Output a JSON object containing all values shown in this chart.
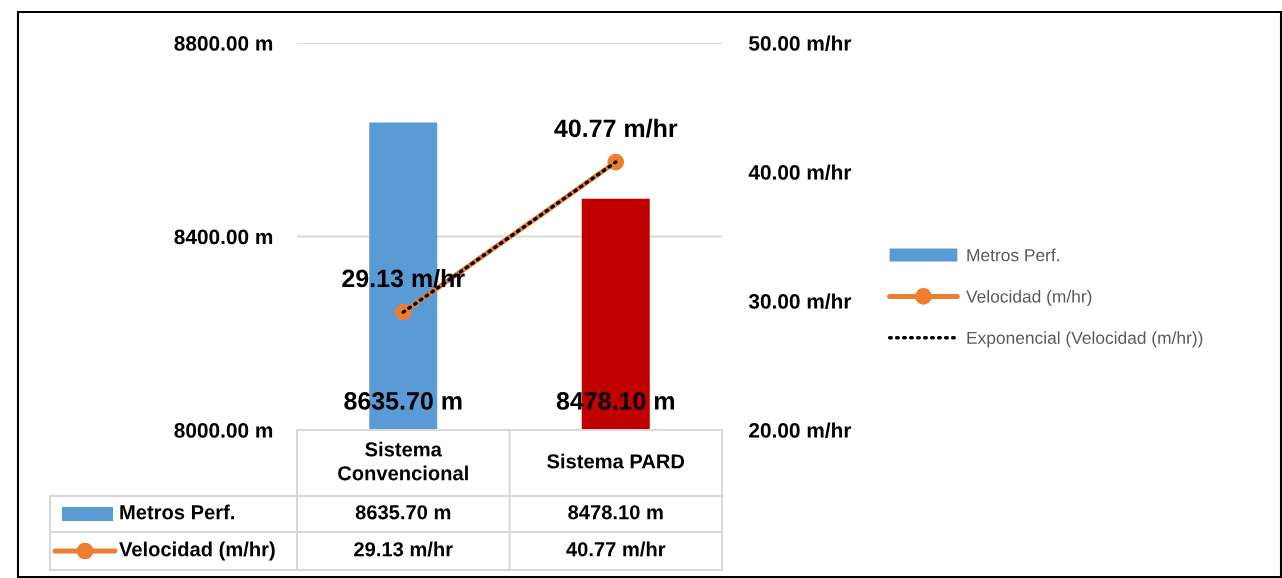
{
  "chart_data": {
    "type": "bar",
    "categories": [
      "Sistema Convencional",
      "Sistema PARD"
    ],
    "series": [
      {
        "name": "Metros Perf.",
        "color": "#5b9bd5",
        "colors": [
          "#5b9bd5",
          "#c00000"
        ],
        "values": [
          8635.7,
          8478.1
        ],
        "value_labels": [
          "8635.70 m",
          "8478.10 m"
        ]
      },
      {
        "name": "Velocidad (m/hr)",
        "type": "line",
        "axis": "y2",
        "color": "#ed7d31",
        "marker": "circle",
        "values": [
          29.13,
          40.77
        ],
        "value_labels": [
          "29.13 m/hr",
          "40.77 m/hr"
        ]
      },
      {
        "name": "Exponencial (Velocidad (m/hr))",
        "type": "line",
        "axis": "y2",
        "color": "#000000",
        "line_style": "dotted",
        "values": [
          29.13,
          40.77
        ]
      }
    ],
    "ylim": [
      8000,
      8800
    ],
    "yticks": [
      {
        "value": 8000,
        "label": "8000.00 m"
      },
      {
        "value": 8400,
        "label": "8400.00 m"
      },
      {
        "value": 8800,
        "label": "8800.00 m"
      }
    ],
    "y2lim": [
      20,
      50
    ],
    "y2ticks": [
      {
        "value": 20,
        "label": "20.00 m/hr"
      },
      {
        "value": 30,
        "label": "30.00 m/hr"
      },
      {
        "value": 40,
        "label": "40.00 m/hr"
      },
      {
        "value": 50,
        "label": "50.00 m/hr"
      }
    ],
    "grid": "y",
    "legend": "right"
  }
}
